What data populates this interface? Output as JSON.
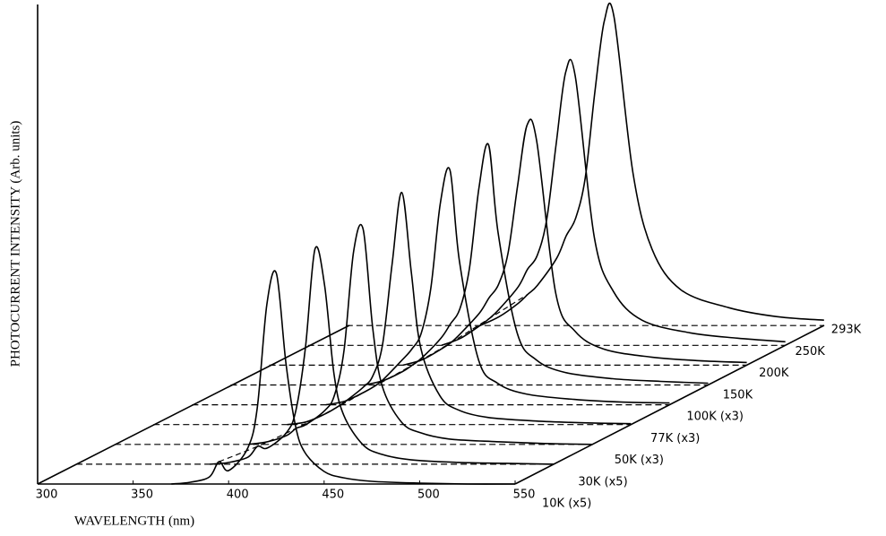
{
  "chart_data": {
    "type": "waterfall",
    "xlabel": "WAVELENGTH (nm)",
    "ylabel": "PHOTOCURRENT INTENSITY (Arb. units)",
    "xlim": [
      300,
      550
    ],
    "xticks": [
      300,
      350,
      400,
      450,
      500,
      550
    ],
    "ylim": [
      0,
      360
    ],
    "x": [
      370,
      380,
      390,
      395,
      400,
      410,
      415,
      420,
      425,
      430,
      435,
      440,
      450,
      460,
      475,
      500,
      525,
      550
    ],
    "color": "#000000",
    "series": [
      {
        "name": "10K (x5)",
        "values": [
          0,
          2,
          8,
          25,
          15,
          40,
          85,
          200,
          235,
          135,
          65,
          35,
          14,
          7,
          3,
          1,
          0,
          0
        ]
      },
      {
        "name": "30K (x5)",
        "values": [
          0,
          2,
          8,
          20,
          18,
          35,
          60,
          130,
          240,
          200,
          100,
          55,
          22,
          11,
          5,
          2,
          1,
          0
        ]
      },
      {
        "name": "50K (x3)",
        "values": [
          0,
          3,
          10,
          18,
          22,
          38,
          55,
          105,
          215,
          240,
          130,
          65,
          25,
          13,
          6,
          3,
          1,
          0
        ]
      },
      {
        "name": "77K (x3)",
        "values": [
          0,
          3,
          12,
          18,
          25,
          42,
          55,
          90,
          180,
          259,
          170,
          85,
          32,
          16,
          8,
          4,
          2,
          1
        ]
      },
      {
        "name": "100K (x3)",
        "values": [
          0,
          4,
          14,
          20,
          28,
          50,
          62,
          80,
          130,
          225,
          262,
          160,
          50,
          24,
          12,
          6,
          3,
          2
        ]
      },
      {
        "name": "150K",
        "values": [
          0,
          5,
          15,
          22,
          30,
          52,
          68,
          85,
          130,
          220,
          268,
          170,
          58,
          28,
          14,
          7,
          4,
          2
        ]
      },
      {
        "name": "200K",
        "values": [
          0,
          6,
          18,
          25,
          35,
          58,
          75,
          90,
          125,
          200,
          268,
          250,
          80,
          38,
          18,
          9,
          5,
          3
        ]
      },
      {
        "name": "250K",
        "values": [
          0,
          8,
          22,
          30,
          40,
          65,
          85,
          100,
          140,
          225,
          305,
          300,
          120,
          60,
          28,
          14,
          8,
          4
        ]
      },
      {
        "name": "293K",
        "values": [
          0,
          10,
          25,
          35,
          45,
          75,
          100,
          120,
          165,
          260,
          340,
          345,
          170,
          85,
          40,
          20,
          10,
          6
        ]
      }
    ]
  }
}
